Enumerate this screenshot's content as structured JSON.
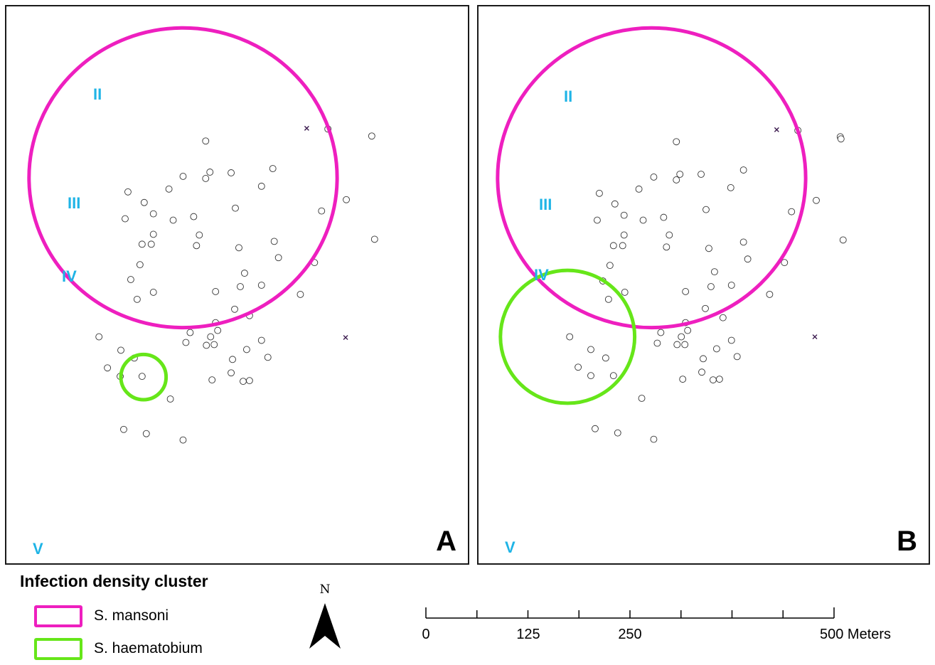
{
  "panels": [
    {
      "letter": "A",
      "zones": [
        "II",
        "III",
        "IV",
        "V"
      ]
    },
    {
      "letter": "B",
      "zones": [
        "II",
        "III",
        "IV",
        "V"
      ]
    }
  ],
  "legend": {
    "title": "Infection density cluster",
    "items": [
      {
        "label": "S. mansoni",
        "color": "#ee1fbf"
      },
      {
        "label": "S. haematobium",
        "color": "#66e619"
      }
    ]
  },
  "north_arrow": {
    "label": "N",
    "icon": "north-arrow-icon"
  },
  "scale_bar": {
    "tick_labels": [
      "0",
      "125",
      "250",
      "500 Meters"
    ],
    "values": [
      0,
      125,
      250,
      500
    ],
    "unit": "Meters"
  },
  "colors": {
    "mansoni": "#ee1fbf",
    "haematobium": "#66e619",
    "zone_label": "#1fb4e6",
    "cross_marker": "#3b1a4e"
  }
}
